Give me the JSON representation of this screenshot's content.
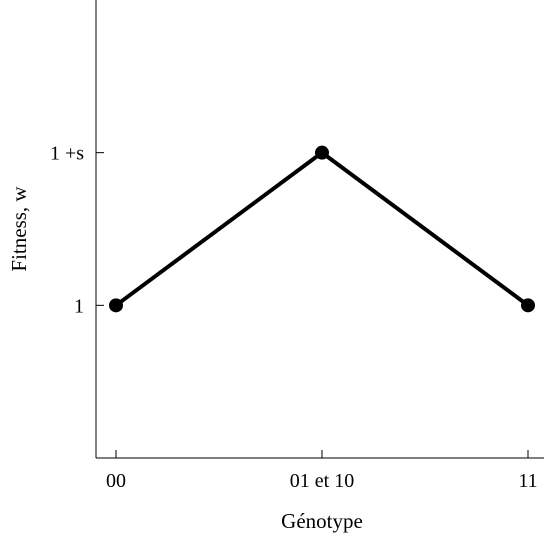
{
  "chart_data": {
    "type": "line",
    "title": "",
    "xlabel": "Génotype",
    "ylabel": "Fitness, w",
    "categories": [
      "00",
      "01 et 10",
      "11"
    ],
    "series": [
      {
        "values": [
          1,
          1.5,
          1
        ]
      }
    ],
    "y_ticks": [
      {
        "value": 1,
        "label": "1"
      },
      {
        "value": 1.5,
        "label": "1 +s"
      }
    ],
    "ylim": [
      0.5,
      2.0
    ],
    "grid": false,
    "legend": "none",
    "line_color": "#000000",
    "marker": "filled-circle"
  }
}
